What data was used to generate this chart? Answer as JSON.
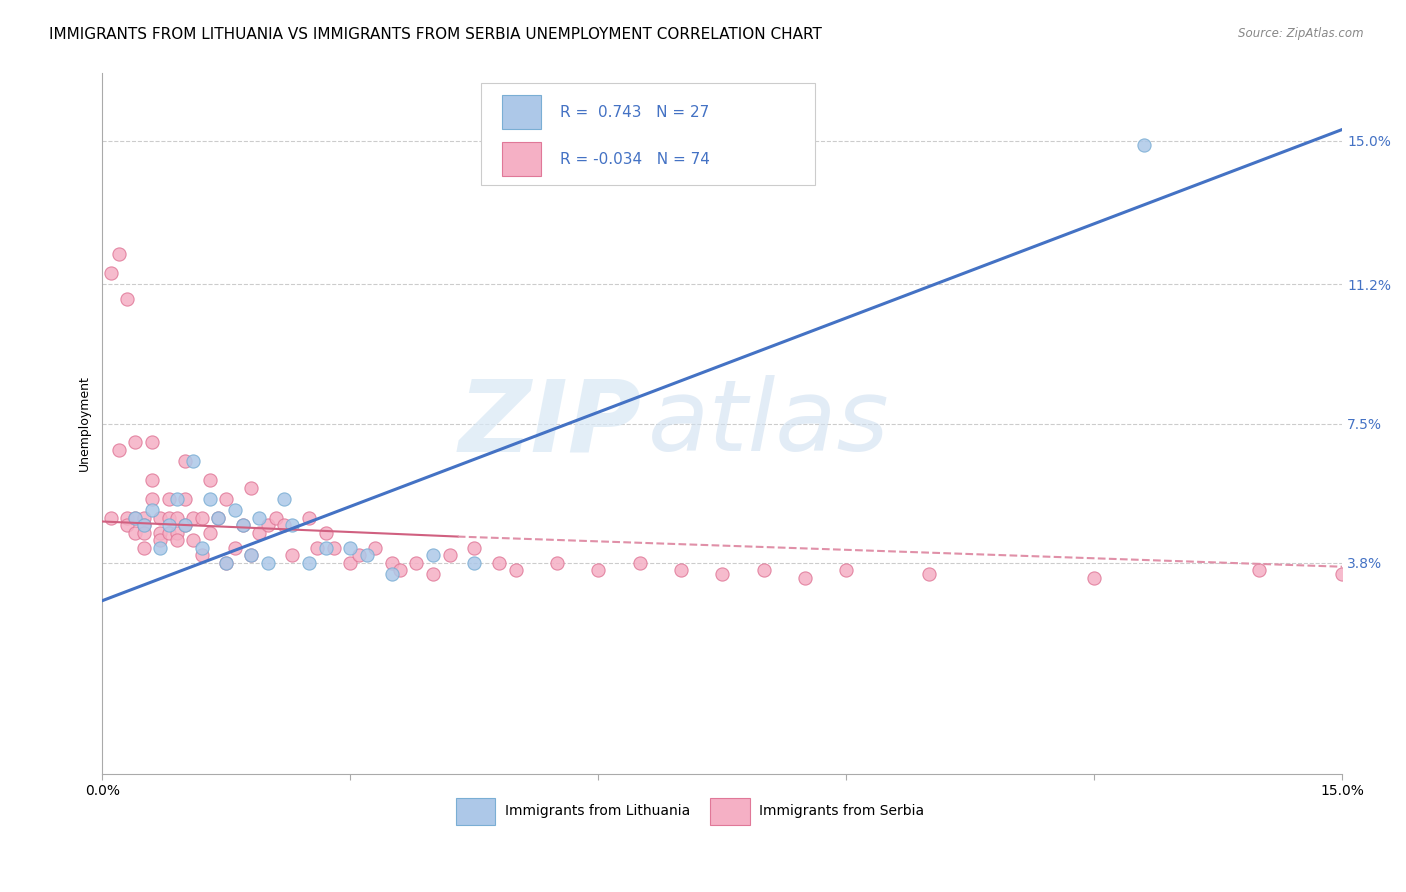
{
  "title": "IMMIGRANTS FROM LITHUANIA VS IMMIGRANTS FROM SERBIA UNEMPLOYMENT CORRELATION CHART",
  "source": "Source: ZipAtlas.com",
  "ylabel": "Unemployment",
  "ytick_labels": [
    "15.0%",
    "11.2%",
    "7.5%",
    "3.8%"
  ],
  "ytick_values": [
    0.15,
    0.112,
    0.075,
    0.038
  ],
  "xmin": 0.0,
  "xmax": 0.15,
  "ymin": -0.018,
  "ymax": 0.168,
  "scatter_lithuania": {
    "color": "#adc8e8",
    "edge_color": "#7aaed4",
    "x": [
      0.004,
      0.005,
      0.006,
      0.007,
      0.008,
      0.009,
      0.01,
      0.011,
      0.012,
      0.013,
      0.014,
      0.015,
      0.016,
      0.017,
      0.018,
      0.019,
      0.02,
      0.022,
      0.023,
      0.025,
      0.027,
      0.03,
      0.032,
      0.035,
      0.04,
      0.045,
      0.126
    ],
    "y": [
      0.05,
      0.048,
      0.052,
      0.042,
      0.048,
      0.055,
      0.048,
      0.065,
      0.042,
      0.055,
      0.05,
      0.038,
      0.052,
      0.048,
      0.04,
      0.05,
      0.038,
      0.055,
      0.048,
      0.038,
      0.042,
      0.042,
      0.04,
      0.035,
      0.04,
      0.038,
      0.149
    ]
  },
  "scatter_serbia": {
    "color": "#f5b0c5",
    "edge_color": "#e07898",
    "x": [
      0.001,
      0.001,
      0.002,
      0.002,
      0.003,
      0.003,
      0.003,
      0.004,
      0.004,
      0.004,
      0.005,
      0.005,
      0.005,
      0.005,
      0.006,
      0.006,
      0.006,
      0.007,
      0.007,
      0.007,
      0.008,
      0.008,
      0.008,
      0.009,
      0.009,
      0.009,
      0.01,
      0.01,
      0.01,
      0.011,
      0.011,
      0.012,
      0.012,
      0.013,
      0.013,
      0.014,
      0.015,
      0.015,
      0.016,
      0.017,
      0.018,
      0.018,
      0.019,
      0.02,
      0.021,
      0.022,
      0.023,
      0.025,
      0.026,
      0.027,
      0.028,
      0.03,
      0.031,
      0.033,
      0.035,
      0.036,
      0.038,
      0.04,
      0.042,
      0.045,
      0.048,
      0.05,
      0.055,
      0.06,
      0.065,
      0.07,
      0.075,
      0.08,
      0.085,
      0.09,
      0.1,
      0.12,
      0.14,
      0.15
    ],
    "y": [
      0.05,
      0.115,
      0.068,
      0.12,
      0.05,
      0.048,
      0.108,
      0.07,
      0.05,
      0.046,
      0.05,
      0.048,
      0.046,
      0.042,
      0.07,
      0.06,
      0.055,
      0.05,
      0.046,
      0.044,
      0.055,
      0.05,
      0.046,
      0.05,
      0.046,
      0.044,
      0.065,
      0.055,
      0.048,
      0.05,
      0.044,
      0.05,
      0.04,
      0.06,
      0.046,
      0.05,
      0.055,
      0.038,
      0.042,
      0.048,
      0.058,
      0.04,
      0.046,
      0.048,
      0.05,
      0.048,
      0.04,
      0.05,
      0.042,
      0.046,
      0.042,
      0.038,
      0.04,
      0.042,
      0.038,
      0.036,
      0.038,
      0.035,
      0.04,
      0.042,
      0.038,
      0.036,
      0.038,
      0.036,
      0.038,
      0.036,
      0.035,
      0.036,
      0.034,
      0.036,
      0.035,
      0.034,
      0.036,
      0.035
    ]
  },
  "trendline_lithuania": {
    "color": "#4472c4",
    "x_start": 0.0,
    "x_end": 0.15,
    "y_start": 0.028,
    "y_end": 0.153
  },
  "trendline_serbia_solid": {
    "color": "#d06080",
    "x_start": 0.0,
    "x_end": 0.043,
    "y_start": 0.049,
    "y_end": 0.045
  },
  "trendline_serbia_dashed": {
    "color": "#e090a8",
    "x_start": 0.043,
    "x_end": 0.15,
    "y_start": 0.045,
    "y_end": 0.037
  },
  "watermark_zip": "ZIP",
  "watermark_atlas": "atlas",
  "background_color": "#ffffff",
  "grid_color": "#cccccc",
  "title_fontsize": 11,
  "axis_label_fontsize": 9,
  "tick_fontsize": 10,
  "legend_r_color": "#4472c4",
  "legend_lit_label_r": "0.743",
  "legend_lit_label_n": "27",
  "legend_ser_label_r": "-0.034",
  "legend_ser_label_n": "74"
}
